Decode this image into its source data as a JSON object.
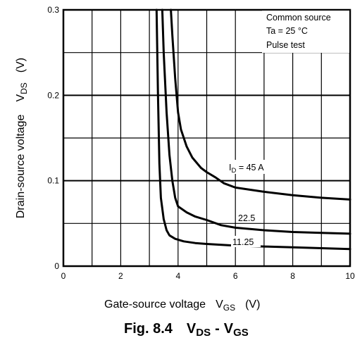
{
  "chart_data": {
    "type": "line",
    "title": "Fig. 8.4",
    "title_var1": "V",
    "title_var1_sub": "DS",
    "title_sep": "-",
    "title_var2": "V",
    "title_var2_sub": "GS",
    "xlabel": "Gate-source voltage",
    "xlabel_var": "V",
    "xlabel_sub": "GS",
    "xlabel_unit": "(V)",
    "ylabel": "Drain-source voltage",
    "ylabel_var": "V",
    "ylabel_sub": "DS",
    "ylabel_unit": "(V)",
    "xlim": [
      0,
      10
    ],
    "ylim": [
      0,
      0.3
    ],
    "x_ticks": [
      "0",
      "2",
      "4",
      "6",
      "8",
      "10"
    ],
    "y_ticks": [
      "0",
      "0.1",
      "0.2",
      "0.3"
    ],
    "grid": true,
    "conditions": [
      "Common source",
      "Ta = 25 °C",
      "Pulse test"
    ],
    "series": [
      {
        "name": "ID = 45 A",
        "label_prefix": "I",
        "label_sub": "D",
        "label_rest": " = 45 A",
        "points": [
          [
            3.75,
            0.3
          ],
          [
            3.8,
            0.27
          ],
          [
            3.9,
            0.22
          ],
          [
            4.0,
            0.18
          ],
          [
            4.1,
            0.16
          ],
          [
            4.3,
            0.14
          ],
          [
            4.5,
            0.127
          ],
          [
            4.8,
            0.115
          ],
          [
            5.0,
            0.11
          ],
          [
            5.3,
            0.104
          ],
          [
            5.6,
            0.097
          ],
          [
            6.0,
            0.092
          ],
          [
            7.0,
            0.087
          ],
          [
            8.0,
            0.083
          ],
          [
            9.0,
            0.08
          ],
          [
            10.0,
            0.078
          ]
        ]
      },
      {
        "name": "22.5",
        "label_rest": "22.5",
        "points": [
          [
            3.45,
            0.3
          ],
          [
            3.5,
            0.25
          ],
          [
            3.6,
            0.18
          ],
          [
            3.7,
            0.13
          ],
          [
            3.8,
            0.1
          ],
          [
            3.9,
            0.08
          ],
          [
            4.0,
            0.07
          ],
          [
            4.3,
            0.063
          ],
          [
            4.6,
            0.058
          ],
          [
            5.0,
            0.054
          ],
          [
            5.5,
            0.048
          ],
          [
            6.0,
            0.045
          ],
          [
            7.0,
            0.042
          ],
          [
            8.0,
            0.04
          ],
          [
            9.0,
            0.039
          ],
          [
            10.0,
            0.038
          ]
        ]
      },
      {
        "name": "11.25",
        "label_rest": "11.25",
        "points": [
          [
            3.25,
            0.3
          ],
          [
            3.3,
            0.2
          ],
          [
            3.35,
            0.12
          ],
          [
            3.4,
            0.08
          ],
          [
            3.5,
            0.055
          ],
          [
            3.6,
            0.042
          ],
          [
            3.7,
            0.036
          ],
          [
            3.9,
            0.032
          ],
          [
            4.2,
            0.029
          ],
          [
            4.6,
            0.027
          ],
          [
            5.0,
            0.026
          ],
          [
            6.0,
            0.024
          ],
          [
            7.0,
            0.023
          ],
          [
            8.0,
            0.022
          ],
          [
            9.0,
            0.021
          ],
          [
            10.0,
            0.02
          ]
        ]
      }
    ]
  }
}
